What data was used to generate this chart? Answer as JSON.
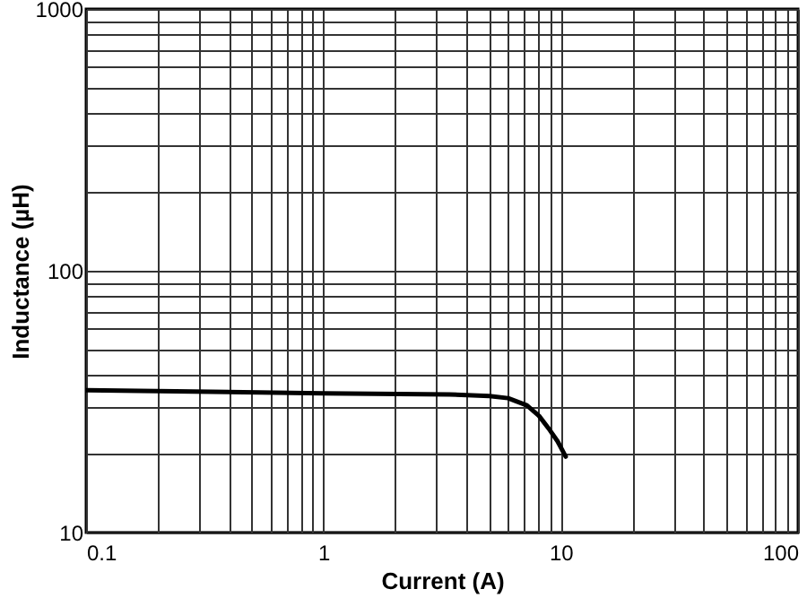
{
  "chart_data": {
    "type": "line",
    "xlabel": "Current (A)",
    "ylabel": "Inductance (µH)",
    "log": "xy",
    "grid": true,
    "marker": "none",
    "line_style": "solid",
    "xlim": [
      0.1,
      100
    ],
    "ylim": [
      10,
      1000
    ],
    "xticks": [
      0.1,
      {
        "value": 0.2,
        "label": null
      },
      {
        "value": 0.3,
        "label": null
      },
      {
        "value": 0.4,
        "label": null
      },
      {
        "value": 0.5,
        "label": null
      },
      {
        "value": 0.6,
        "label": null
      },
      {
        "value": 0.7,
        "label": null
      },
      {
        "value": 0.8,
        "label": null
      },
      {
        "value": 0.9,
        "label": null
      },
      1,
      {
        "value": 2,
        "label": null
      },
      {
        "value": 3,
        "label": null
      },
      {
        "value": 4,
        "label": null
      },
      {
        "value": 5,
        "label": null
      },
      {
        "value": 6,
        "label": null
      },
      {
        "value": 7,
        "label": null
      },
      {
        "value": 8,
        "label": null
      },
      {
        "value": 9,
        "label": null
      },
      10,
      {
        "value": 20,
        "label": null
      },
      {
        "value": 30,
        "label": null
      },
      {
        "value": 40,
        "label": null
      },
      {
        "value": 50,
        "label": null
      },
      {
        "value": 60,
        "label": null
      },
      {
        "value": 70,
        "label": null
      },
      {
        "value": 80,
        "label": null
      },
      {
        "value": 90,
        "label": null
      },
      100
    ],
    "yticks": [
      10,
      {
        "value": 20,
        "label": null
      },
      {
        "value": 30,
        "label": null
      },
      {
        "value": 40,
        "label": null
      },
      {
        "value": 50,
        "label": null
      },
      {
        "value": 60,
        "label": null
      },
      {
        "value": 70,
        "label": null
      },
      {
        "value": 80,
        "label": null
      },
      {
        "value": 90,
        "label": null
      },
      100,
      {
        "value": 200,
        "label": null
      },
      {
        "value": 300,
        "label": null
      },
      {
        "value": 400,
        "label": null
      },
      {
        "value": 500,
        "label": null
      },
      {
        "value": 600,
        "label": null
      },
      {
        "value": 700,
        "label": null
      },
      {
        "value": 800,
        "label": null
      },
      {
        "value": 900,
        "label": null
      },
      1000
    ],
    "series": [
      {
        "color": "#000000",
        "x": [
          0.1,
          1,
          3.4,
          5,
          6,
          7.2,
          8.1,
          9,
          9.7,
          10.5
        ],
        "values": [
          35,
          34,
          33.7,
          33.2,
          32.6,
          30.6,
          27.9,
          24.6,
          22.3,
          19.5
        ]
      }
    ]
  }
}
